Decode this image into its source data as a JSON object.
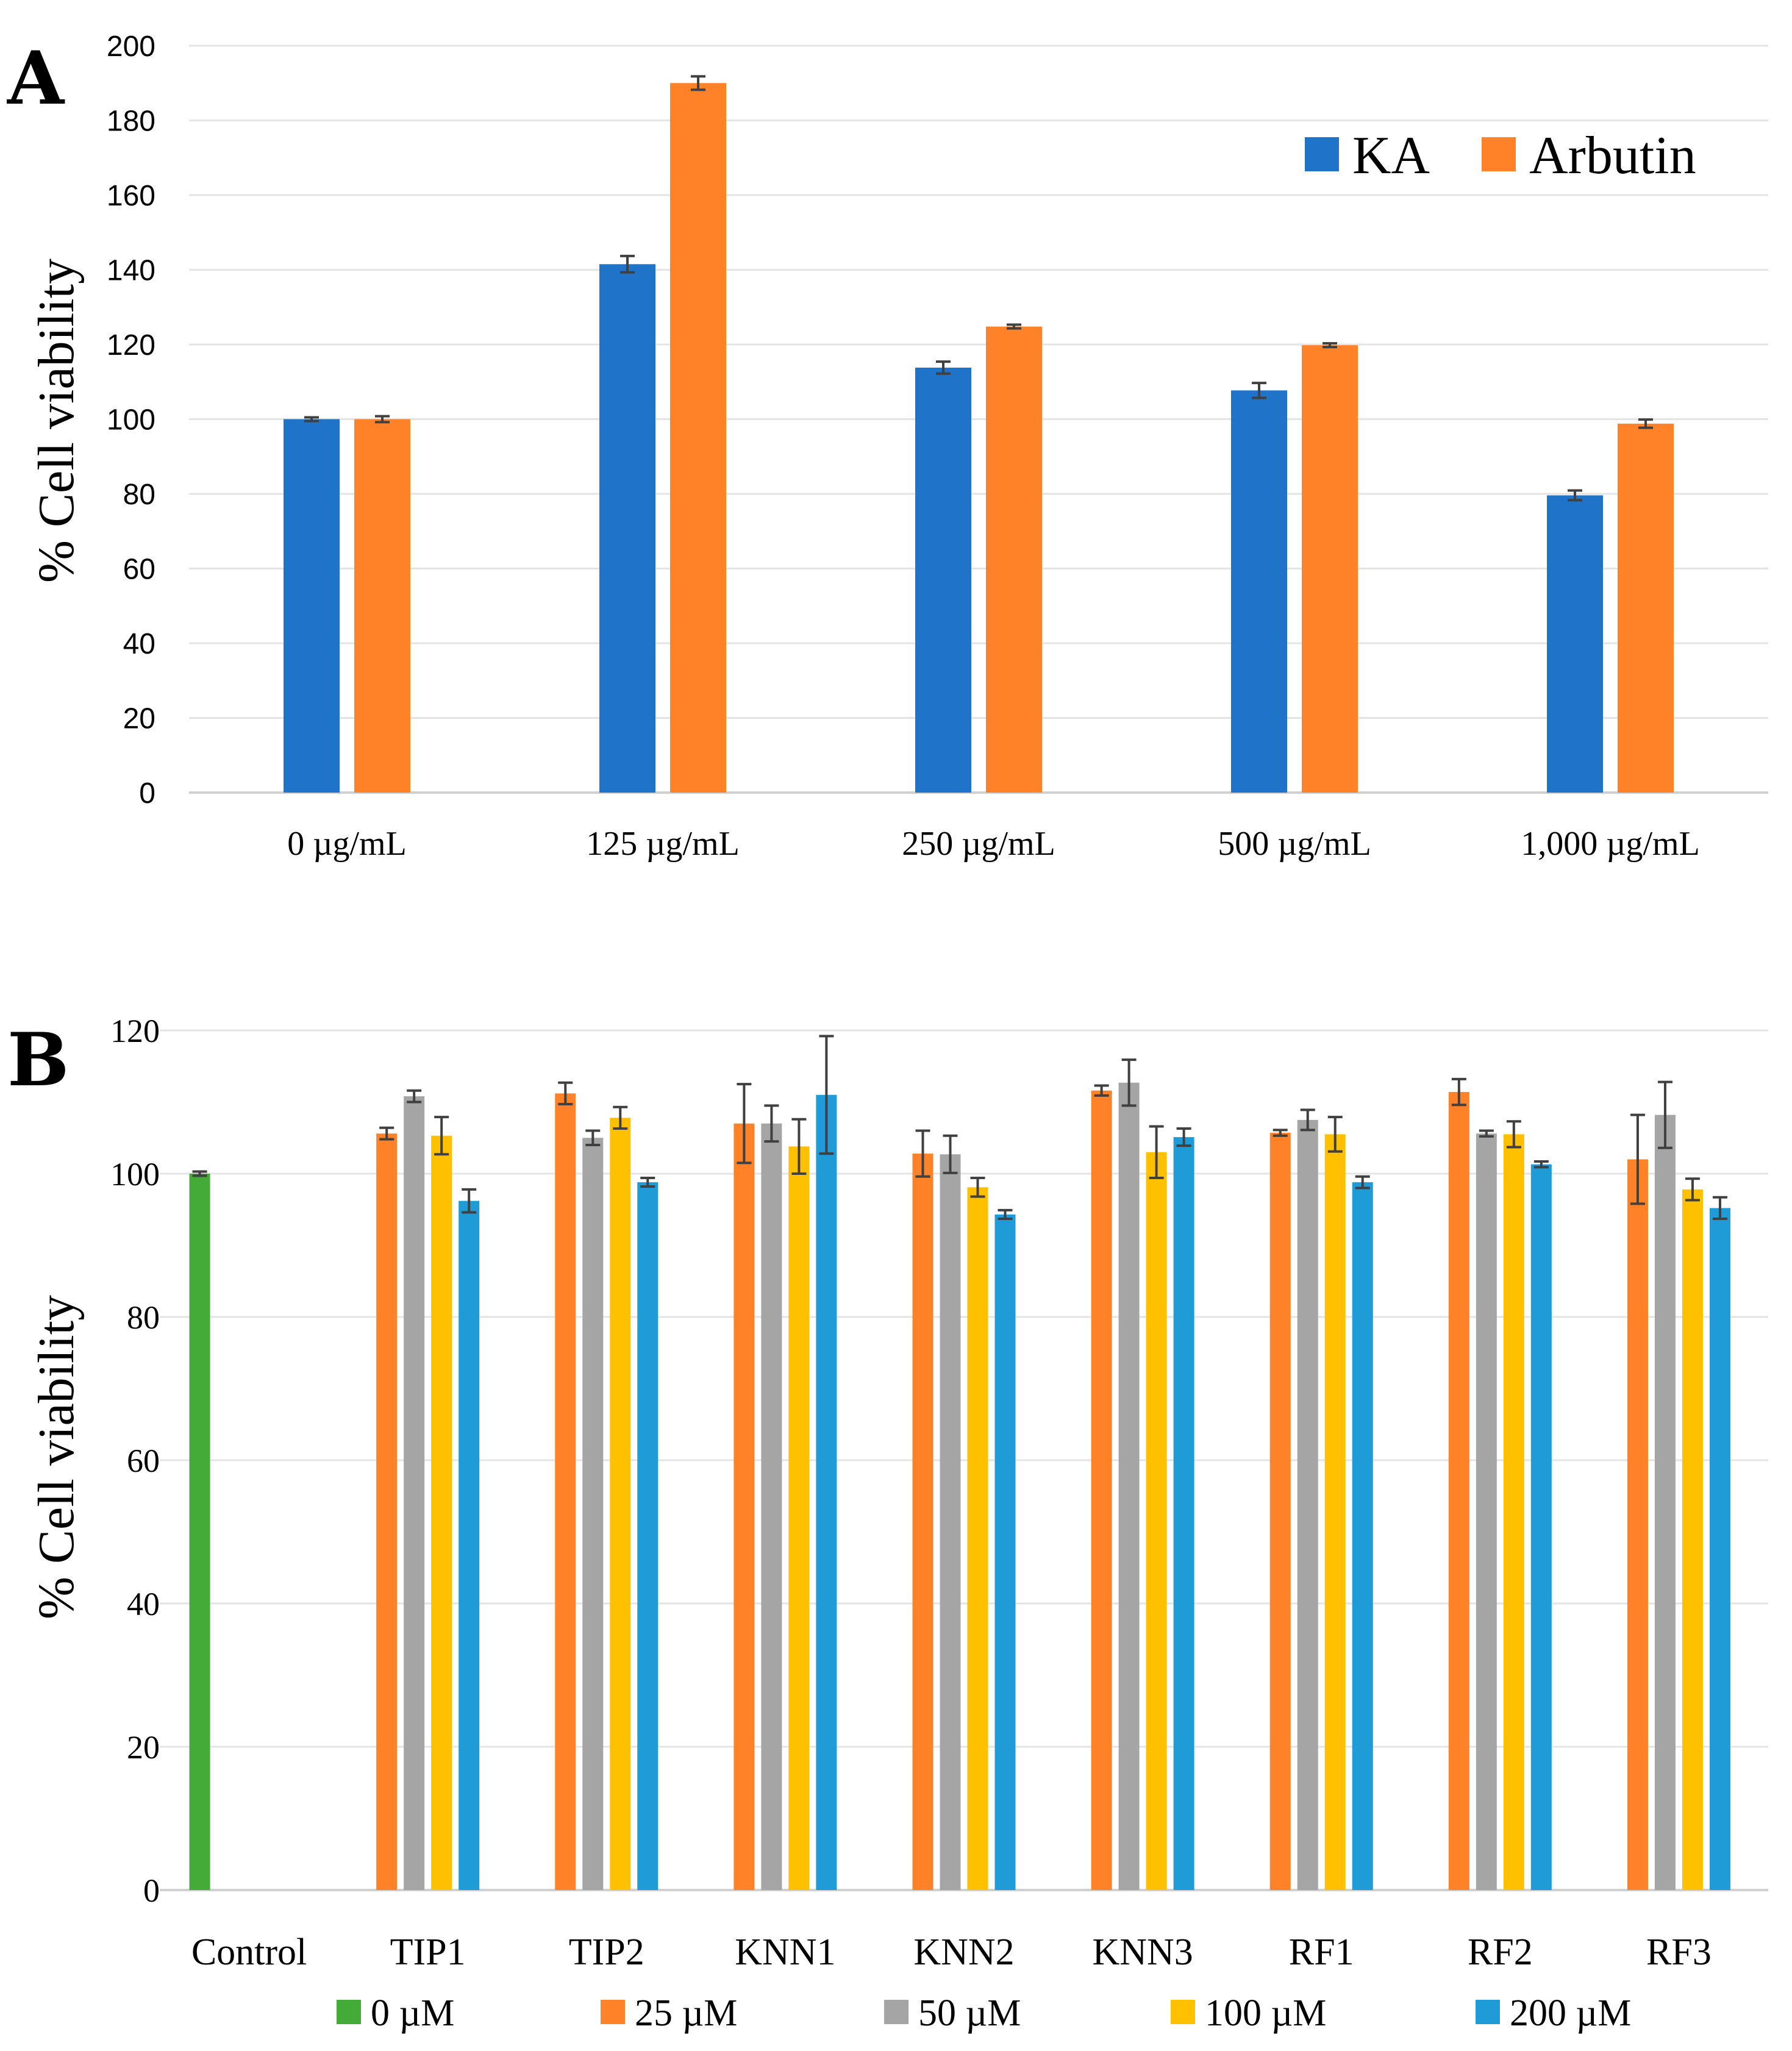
{
  "chart_data": [
    {
      "panel": "A",
      "type": "bar",
      "ylabel": "% Cell viability",
      "xlabel": "",
      "ylim": [
        0,
        200
      ],
      "yticks": [
        0,
        20,
        40,
        60,
        80,
        100,
        120,
        140,
        160,
        180,
        200
      ],
      "grid": true,
      "legend_position": "top-right",
      "categories": [
        "0 µg/mL",
        "125 µg/mL",
        "250 µg/mL",
        "500 µg/mL",
        "1,000 µg/mL"
      ],
      "series": [
        {
          "name": "KA",
          "color": "#1F73C9",
          "values": [
            100,
            141.5,
            113.8,
            107.7,
            79.6
          ],
          "errors": [
            0.5,
            2.2,
            1.6,
            2.0,
            1.3
          ]
        },
        {
          "name": "Arbutin",
          "color": "#FF8128",
          "values": [
            100,
            190,
            124.8,
            119.8,
            98.8
          ],
          "errors": [
            0.8,
            1.8,
            0.5,
            0.5,
            1.1
          ]
        }
      ]
    },
    {
      "panel": "B",
      "type": "bar",
      "ylabel": "% Cell viability",
      "xlabel": "",
      "ylim": [
        0,
        120
      ],
      "yticks": [
        0,
        20,
        40,
        60,
        80,
        100,
        120
      ],
      "grid": true,
      "legend_position": "bottom",
      "categories": [
        "Control",
        "TIP1",
        "TIP2",
        "KNN1",
        "KNN2",
        "KNN3",
        "RF1",
        "RF2",
        "RF3"
      ],
      "control": {
        "series": "0 µM",
        "value": 100,
        "error": 0.3
      },
      "series": [
        {
          "name": "0 µM",
          "color": "#44AA38",
          "values": [
            100,
            null,
            null,
            null,
            null,
            null,
            null,
            null,
            null
          ],
          "errors": [
            0.3,
            null,
            null,
            null,
            null,
            null,
            null,
            null,
            null
          ]
        },
        {
          "name": "25 µM",
          "color": "#FF8128",
          "values": [
            null,
            105.6,
            111.2,
            107.0,
            102.8,
            111.6,
            105.7,
            111.4,
            102.0
          ],
          "errors": [
            null,
            0.8,
            1.5,
            5.5,
            3.2,
            0.7,
            0.4,
            1.8,
            6.2
          ]
        },
        {
          "name": "50 µM",
          "color": "#A5A5A5",
          "values": [
            null,
            110.8,
            105.0,
            107.0,
            102.7,
            112.7,
            107.5,
            105.6,
            108.2
          ],
          "errors": [
            null,
            0.8,
            1.0,
            2.5,
            2.6,
            3.2,
            1.4,
            0.4,
            4.6
          ]
        },
        {
          "name": "100 µM",
          "color": "#FFC000",
          "values": [
            null,
            105.3,
            107.8,
            103.8,
            98.1,
            103.0,
            105.5,
            105.5,
            97.8
          ],
          "errors": [
            null,
            2.6,
            1.5,
            3.8,
            1.3,
            3.6,
            2.4,
            1.8,
            1.5
          ]
        },
        {
          "name": "200 µM",
          "color": "#1F9BD7",
          "values": [
            null,
            96.2,
            98.8,
            111.0,
            94.3,
            105.1,
            98.8,
            101.3,
            95.2
          ],
          "errors": [
            null,
            1.6,
            0.6,
            8.2,
            0.6,
            1.2,
            0.8,
            0.4,
            1.5
          ]
        }
      ]
    }
  ]
}
